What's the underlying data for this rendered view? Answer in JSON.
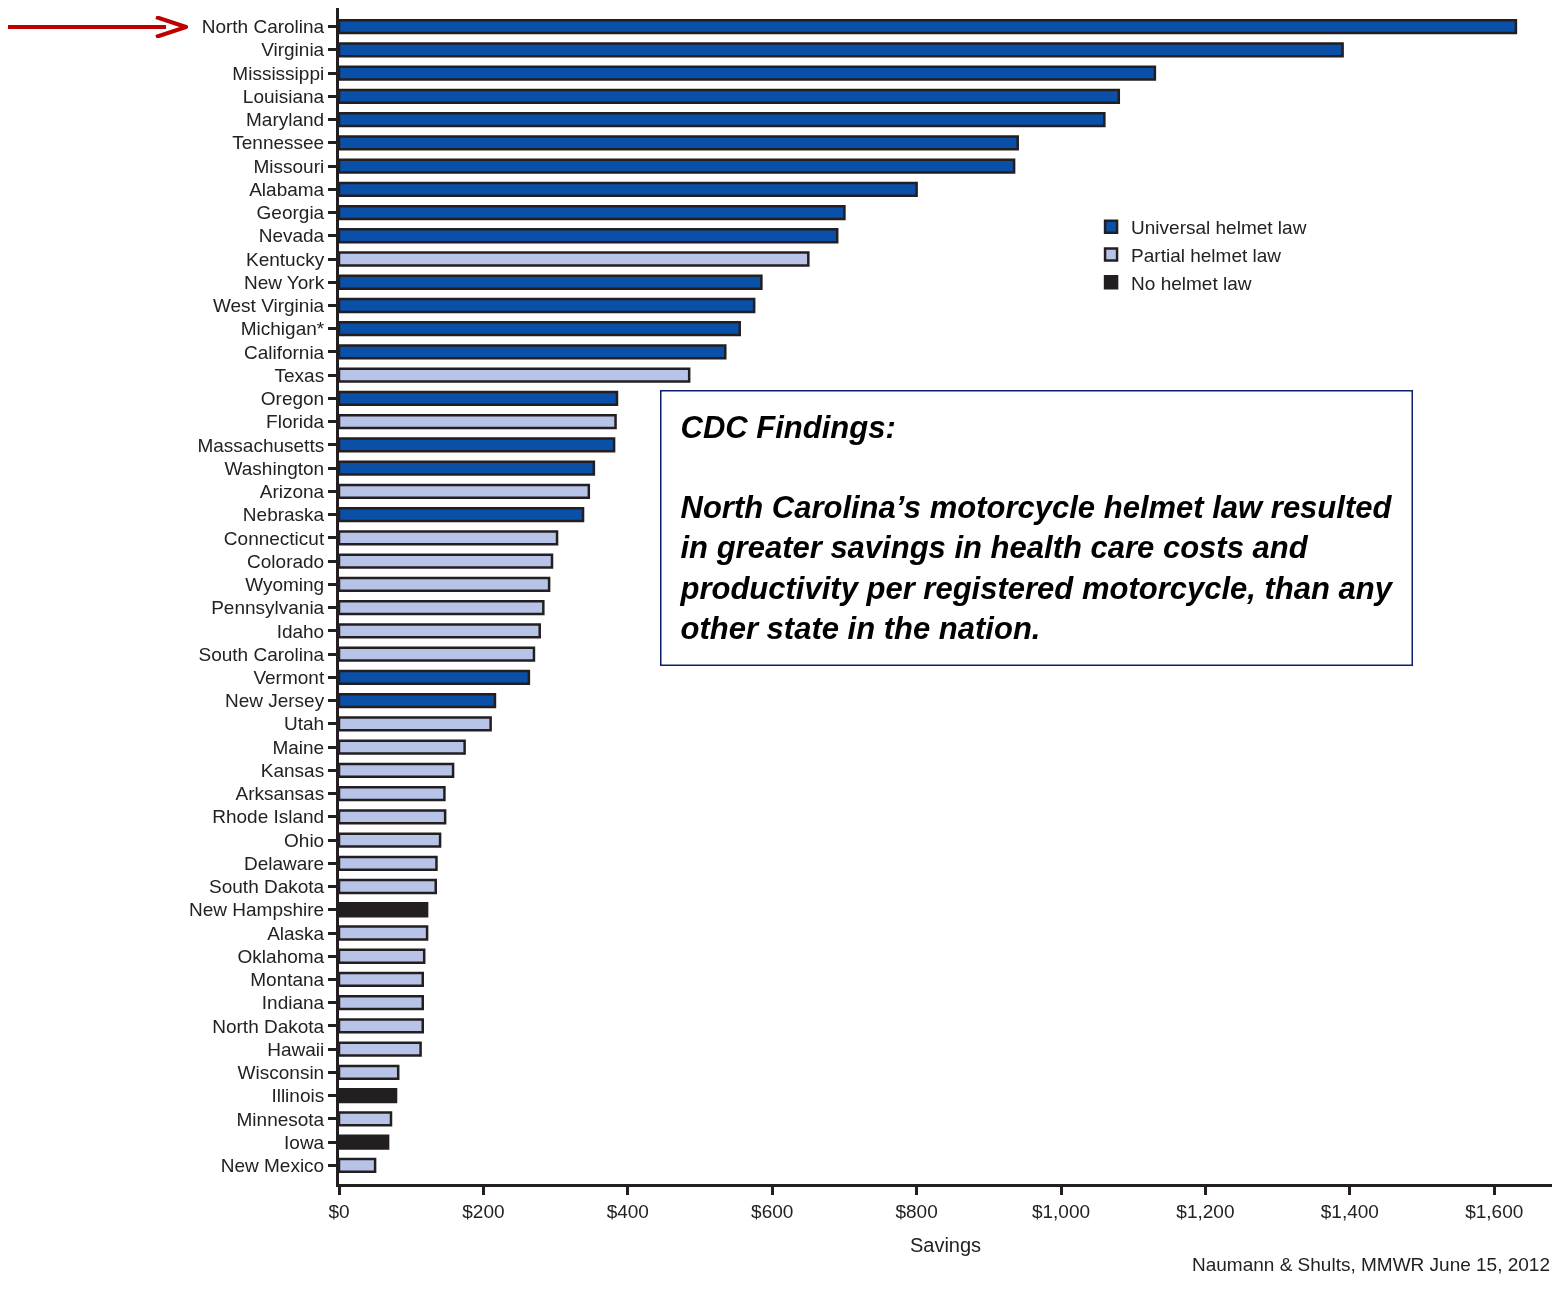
{
  "chart_data": {
    "type": "bar",
    "orientation": "horizontal",
    "xlabel": "Savings",
    "categories": [
      "North Carolina",
      "Virginia",
      "Mississippi",
      "Louisiana",
      "Maryland",
      "Tennessee",
      "Missouri",
      "Alabama",
      "Georgia",
      "Nevada",
      "Kentucky",
      "New York",
      "West Virginia",
      "Michigan*",
      "California",
      "Texas",
      "Oregon",
      "Florida",
      "Massachusetts",
      "Washington",
      "Arizona",
      "Nebraska",
      "Connecticut",
      "Colorado",
      "Wyoming",
      "Pennsylvania",
      "Idaho",
      "South Carolina",
      "Vermont",
      "New Jersey",
      "Utah",
      "Maine",
      "Kansas",
      "Arksansas",
      "Rhode Island",
      "Ohio",
      "Delaware",
      "South Dakota",
      "New Hampshire",
      "Alaska",
      "Oklahoma",
      "Montana",
      "Indiana",
      "North Dakota",
      "Hawaii",
      "Wisconsin",
      "Illinois",
      "Minnesota",
      "Iowa",
      "New Mexico"
    ],
    "series": [
      {
        "name": "Universal helmet law",
        "color": "#0a4fa8",
        "values": [
          1630,
          1390,
          1130,
          1080,
          1060,
          940,
          935,
          800,
          700,
          690,
          null,
          585,
          575,
          555,
          535,
          null,
          385,
          null,
          381,
          353,
          null,
          338,
          null,
          null,
          null,
          null,
          null,
          null,
          263,
          216,
          null,
          null,
          null,
          null,
          null,
          null,
          null,
          null,
          null,
          null,
          null,
          null,
          null,
          null,
          null,
          null,
          null,
          null,
          null,
          null
        ]
      },
      {
        "name": "Partial helmet law",
        "color": "#b8c3e8",
        "values": [
          null,
          null,
          null,
          null,
          null,
          null,
          null,
          null,
          null,
          null,
          650,
          null,
          null,
          null,
          null,
          485,
          null,
          383,
          null,
          null,
          346,
          null,
          302,
          295,
          291,
          283,
          278,
          270,
          null,
          null,
          210,
          174,
          158,
          146,
          147,
          140,
          135,
          134,
          null,
          122,
          118,
          116,
          116,
          116,
          113,
          82,
          null,
          72,
          null,
          50
        ]
      },
      {
        "name": "No helmet law",
        "color": "#231f20",
        "values": [
          null,
          null,
          null,
          null,
          null,
          null,
          null,
          null,
          null,
          null,
          null,
          null,
          null,
          null,
          null,
          null,
          null,
          null,
          null,
          null,
          null,
          null,
          null,
          null,
          null,
          null,
          null,
          null,
          null,
          null,
          null,
          null,
          null,
          null,
          null,
          null,
          null,
          null,
          122,
          null,
          null,
          null,
          null,
          null,
          null,
          null,
          79,
          null,
          68,
          null
        ]
      }
    ],
    "xlim": [
      0,
      1680
    ],
    "xticks": [
      {
        "value": 0,
        "label": "$0"
      },
      {
        "value": 200,
        "label": "$200"
      },
      {
        "value": 400,
        "label": "$400"
      },
      {
        "value": 600,
        "label": "$600"
      },
      {
        "value": 800,
        "label": "$800"
      },
      {
        "value": 1000,
        "label": "$1,000"
      },
      {
        "value": 1200,
        "label": "$1,200"
      },
      {
        "value": 1400,
        "label": "$1,400"
      },
      {
        "value": 1600,
        "label": "$1,600"
      }
    ],
    "grid": false,
    "legend": "top right",
    "annotations": [
      "CDC Findings:",
      "North Carolina’s motorcycle helmet law resulted in greater savings in health care costs and productivity per registered motorcycle, than any other state in the nation.",
      "Naumann & Shults, MMWR June 15, 2012"
    ]
  }
}
